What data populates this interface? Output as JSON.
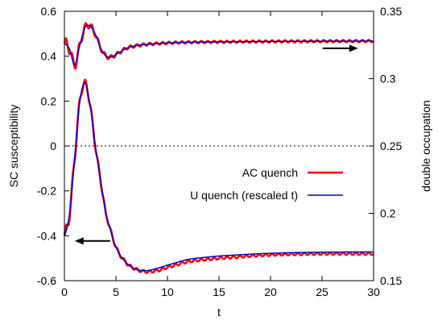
{
  "chart_data": {
    "type": "line",
    "xlabel": "t",
    "ylabel": "SC susceptibility",
    "y2label": "double occupation",
    "xlim": [
      0,
      30
    ],
    "ylim": [
      -0.6,
      0.6
    ],
    "y2lim": [
      0.15,
      0.35
    ],
    "xticks": [
      "0",
      "5",
      "10",
      "15",
      "20",
      "25",
      "30"
    ],
    "yticks": [
      "0.6",
      "0.4",
      "0.2",
      "0",
      "-0.2",
      "-0.4",
      "-0.6"
    ],
    "y2ticks": [
      "0.35",
      "0.3",
      "0.25",
      "0.2",
      "0.15"
    ],
    "xtick_values": [
      0,
      5,
      10,
      15,
      20,
      25,
      30
    ],
    "ytick_values": [
      0.6,
      0.4,
      0.2,
      0,
      -0.2,
      -0.4,
      -0.6
    ],
    "y2tick_values": [
      0.35,
      0.3,
      0.25,
      0.2,
      0.15
    ],
    "zero_line": true,
    "legend_position": "center-right",
    "series": [
      {
        "name": "AC quench",
        "color": "#ff0000",
        "axis": "left",
        "curve": "sc-susceptibility",
        "oscillating": true,
        "x": [
          0,
          0.5,
          1,
          1.5,
          2,
          2.5,
          3,
          3.5,
          4,
          5,
          6,
          7,
          8,
          9,
          10,
          12,
          15,
          20,
          25,
          30
        ],
        "y": [
          -0.4,
          -0.3,
          -0.05,
          0.2,
          0.28,
          0.18,
          0.0,
          -0.15,
          -0.3,
          -0.45,
          -0.52,
          -0.55,
          -0.56,
          -0.555,
          -0.54,
          -0.515,
          -0.5,
          -0.485,
          -0.48,
          -0.48
        ]
      },
      {
        "name": "U quench (rescaled t)",
        "color": "#0000cc",
        "axis": "left",
        "curve": "sc-susceptibility",
        "oscillating": false,
        "x": [
          0,
          0.5,
          1,
          1.5,
          2,
          2.5,
          3,
          3.5,
          4,
          5,
          6,
          7,
          8,
          9,
          10,
          12,
          15,
          20,
          25,
          30
        ],
        "y": [
          -0.4,
          -0.3,
          -0.05,
          0.2,
          0.28,
          0.18,
          0.0,
          -0.15,
          -0.3,
          -0.45,
          -0.52,
          -0.55,
          -0.555,
          -0.545,
          -0.53,
          -0.505,
          -0.49,
          -0.478,
          -0.473,
          -0.472
        ]
      },
      {
        "name": "AC quench",
        "color": "#ff0000",
        "axis": "right",
        "curve": "double-occupation",
        "oscillating": true,
        "x": [
          0,
          0.5,
          1,
          1.5,
          2,
          2.5,
          3,
          3.5,
          4,
          4.5,
          5,
          6,
          7,
          8,
          10,
          12,
          15,
          20,
          25,
          30
        ],
        "y": [
          0.326,
          0.322,
          0.31,
          0.325,
          0.338,
          0.339,
          0.333,
          0.323,
          0.317,
          0.316,
          0.318,
          0.3225,
          0.3245,
          0.3255,
          0.3265,
          0.327,
          0.3273,
          0.3276,
          0.3278,
          0.3279
        ]
      },
      {
        "name": "U quench (rescaled t)",
        "color": "#0000cc",
        "axis": "right",
        "curve": "double-occupation",
        "oscillating": false,
        "x": [
          0,
          0.5,
          1,
          1.5,
          2,
          2.5,
          3,
          3.5,
          4,
          4.5,
          5,
          6,
          7,
          8,
          10,
          12,
          15,
          20,
          25,
          30
        ],
        "y": [
          0.326,
          0.322,
          0.31,
          0.325,
          0.338,
          0.339,
          0.333,
          0.323,
          0.317,
          0.316,
          0.318,
          0.3225,
          0.3245,
          0.3255,
          0.3265,
          0.327,
          0.3273,
          0.3276,
          0.3278,
          0.3279
        ]
      }
    ],
    "annotations": [
      {
        "type": "arrow",
        "direction": "left",
        "points_to": "left-axis",
        "at_x": 1,
        "at_y": -0.423
      },
      {
        "type": "arrow",
        "direction": "right",
        "points_to": "right-axis",
        "at_x": 28.5,
        "at_y": 0.3225
      }
    ]
  }
}
